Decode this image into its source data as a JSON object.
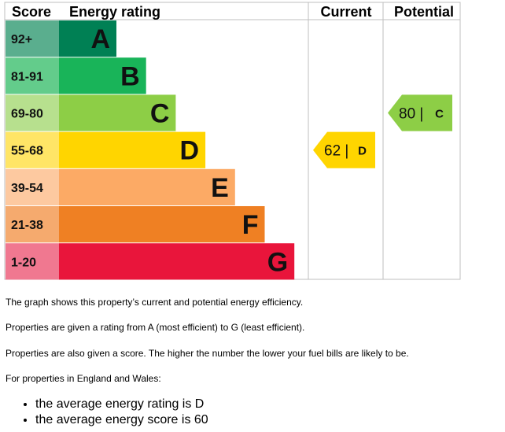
{
  "chart_data": {
    "type": "bar",
    "headers": {
      "score": "Score",
      "rating": "Energy rating",
      "current": "Current",
      "potential": "Potential"
    },
    "bands": [
      {
        "letter": "A",
        "range": "92+",
        "color": "#008054",
        "range_color": "#5aae8e"
      },
      {
        "letter": "B",
        "range": "81-91",
        "color": "#19b459",
        "range_color": "#63cc8b"
      },
      {
        "letter": "C",
        "range": "69-80",
        "color": "#8dce46",
        "range_color": "#b7e08e"
      },
      {
        "letter": "D",
        "range": "55-68",
        "color": "#ffd500",
        "range_color": "#ffe566"
      },
      {
        "letter": "E",
        "range": "39-54",
        "color": "#fcaa65",
        "range_color": "#fdc9a0"
      },
      {
        "letter": "F",
        "range": "21-38",
        "color": "#ef8023",
        "range_color": "#f5aa6e"
      },
      {
        "letter": "G",
        "range": "1-20",
        "color": "#e9153b",
        "range_color": "#f07890"
      }
    ],
    "current": {
      "score": 62,
      "band": "D",
      "label": "62 |",
      "color": "#ffd500"
    },
    "potential": {
      "score": 80,
      "band": "C",
      "label": "80 |",
      "color": "#8dce46"
    }
  },
  "notes": {
    "line1": "The graph shows this property’s current and potential energy efficiency.",
    "line2": "Properties are given a rating from A (most efficient) to G (least efficient).",
    "line3": "Properties are also given a score. The higher the number the lower your fuel bills are likely to be.",
    "line4": "For properties in England and Wales:",
    "bullets": [
      "the average energy rating is D",
      "the average energy score is 60"
    ]
  }
}
